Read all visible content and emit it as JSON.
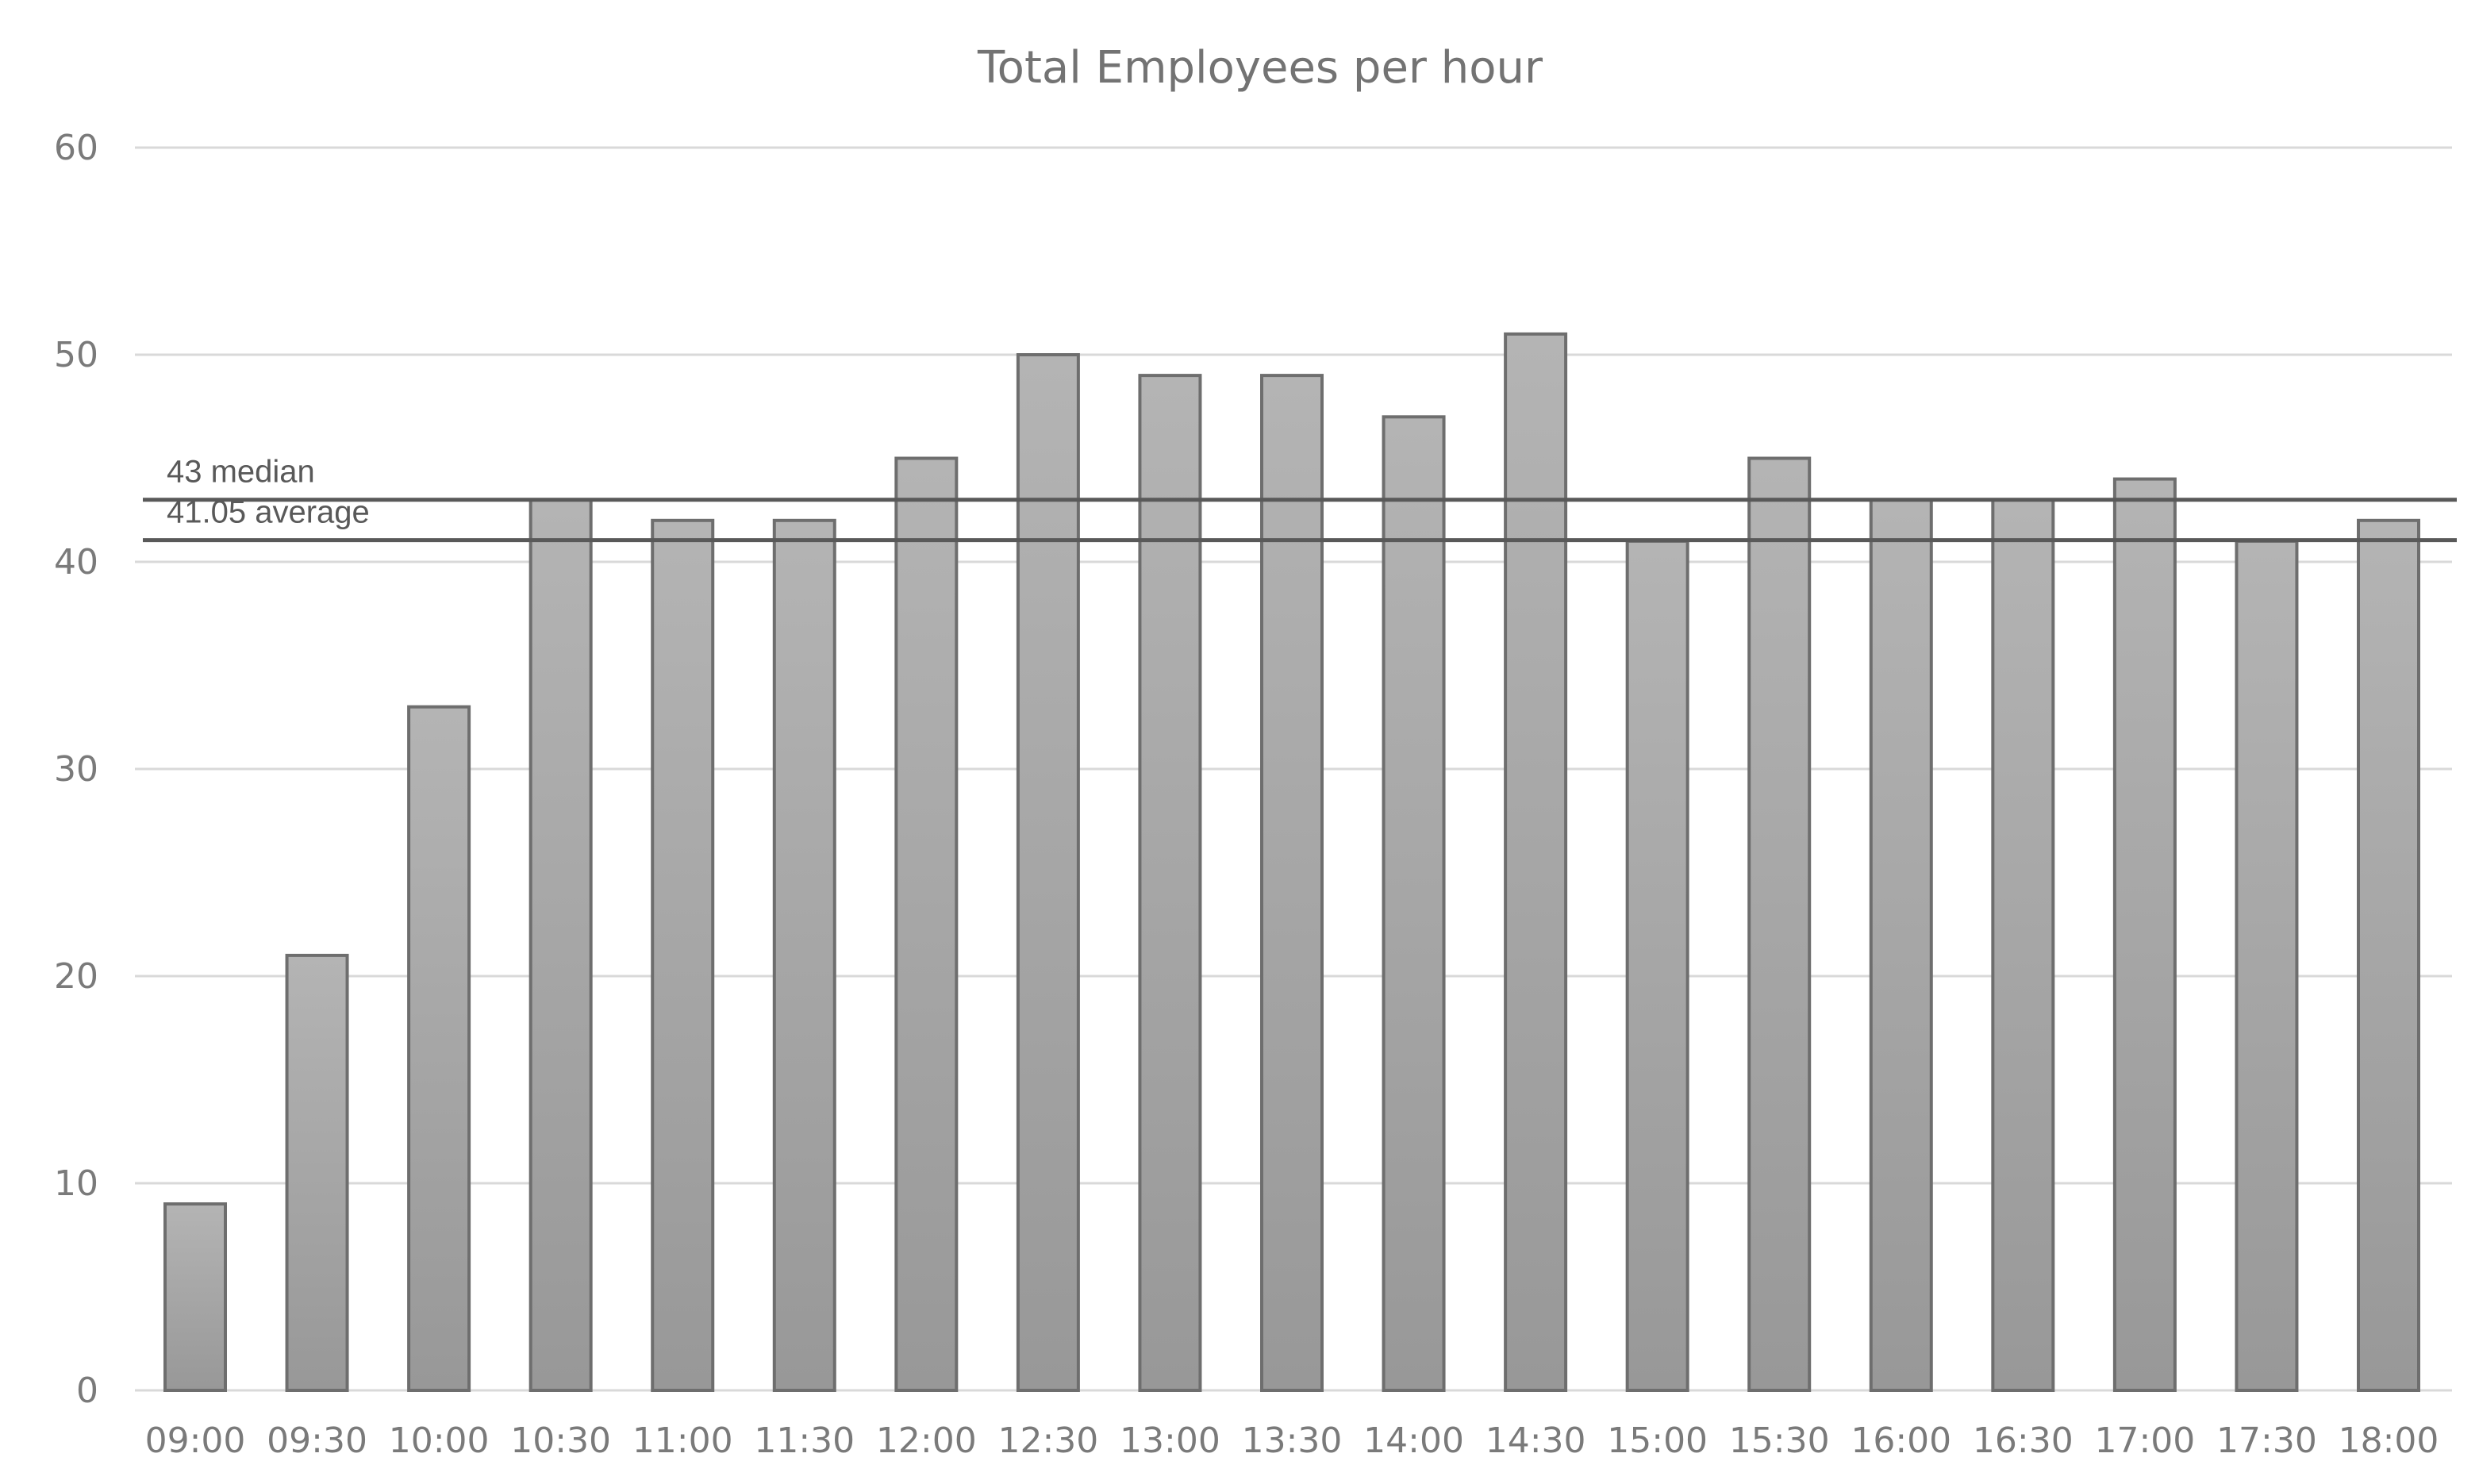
{
  "chart_data": {
    "type": "bar",
    "title": "Total Employees per hour",
    "xlabel": "",
    "ylabel": "",
    "ylim": [
      0,
      60
    ],
    "yticks": [
      0,
      10,
      20,
      30,
      40,
      50,
      60
    ],
    "grid": true,
    "legend": "none",
    "categories": [
      "09:00",
      "09:30",
      "10:00",
      "10:30",
      "11:00",
      "11:30",
      "12:00",
      "12:30",
      "13:00",
      "13:30",
      "14:00",
      "14:30",
      "15:00",
      "15:30",
      "16:00",
      "16:30",
      "17:00",
      "17:30",
      "18:00"
    ],
    "values": [
      9,
      21,
      33,
      43,
      42,
      42,
      45,
      50,
      49,
      49,
      47,
      51,
      41,
      45,
      43,
      43,
      44,
      41,
      42
    ],
    "reference_lines": [
      {
        "label": "43 median",
        "value": 43
      },
      {
        "label": "41.05 average",
        "value": 41.05
      }
    ],
    "colors": {
      "bar_top": "#b4b4b4",
      "bar_bottom": "#989898",
      "bar_border": "#6e6e6e",
      "reference_line": "#595959",
      "gridline": "#d9d9d9"
    }
  }
}
